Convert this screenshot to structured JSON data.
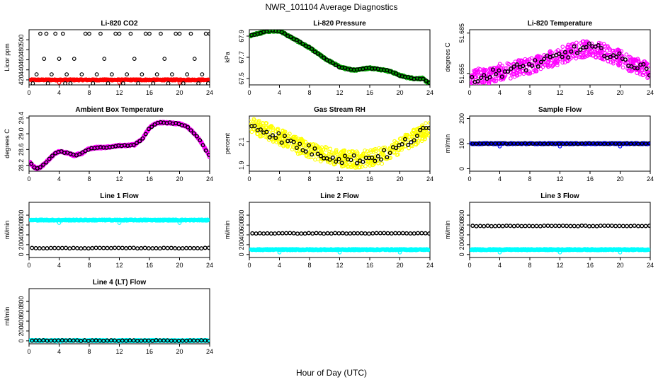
{
  "figure": {
    "title": "NWR_101104  Average Diagnostics",
    "xlabel": "Hour of Day (UTC)"
  },
  "chart_data": [
    {
      "type": "scatter",
      "title": "Li-820 CO2",
      "ylabel": "Licor ppm",
      "xlim": [
        0,
        24
      ],
      "ylim": [
        410,
        520
      ],
      "xticks": [
        "0",
        "4",
        "8",
        "12",
        "16",
        "20",
        "24"
      ],
      "yticks": [
        420,
        440,
        460,
        480,
        500
      ],
      "series": [
        {
          "color": "#ff0000",
          "shape": "band",
          "x": [
            0,
            24
          ],
          "y": [
            420,
            420
          ]
        },
        {
          "color": "#000000",
          "shape": "points",
          "x": [
            1.5,
            2.3,
            3.5,
            4.5,
            7.5,
            8.0,
            9.5,
            11.5,
            12.0,
            13.5,
            15.5,
            16.0,
            17.5,
            19.5,
            20.0,
            21.5,
            23.5,
            24.0,
            2.0,
            4.0,
            6.0,
            10.0,
            14.0,
            18.0,
            22.0,
            1.0,
            3.0,
            5.0,
            7.0,
            9.0,
            11.0,
            13.0,
            15.0,
            17.0,
            19.0,
            21.0,
            23.0,
            0.5,
            2.5,
            4.8,
            5.5,
            8.5,
            10.5,
            12.5,
            14.5,
            16.5,
            18.5,
            20.5,
            22.5,
            23.8
          ],
          "y": [
            512,
            512,
            512,
            512,
            512,
            512,
            512,
            512,
            512,
            512,
            512,
            512,
            512,
            512,
            512,
            512,
            512,
            512,
            462,
            462,
            462,
            462,
            462,
            462,
            462,
            431,
            431,
            431,
            431,
            431,
            431,
            431,
            431,
            431,
            431,
            431,
            431,
            413,
            413,
            413,
            413,
            413,
            413,
            413,
            413,
            413,
            413,
            413,
            413,
            413
          ]
        }
      ]
    },
    {
      "type": "scatter",
      "title": "Li-820 Pressure",
      "ylabel": "kPa",
      "xlim": [
        0,
        24
      ],
      "ylim": [
        67.44,
        67.96
      ],
      "xticks": [
        "0",
        "4",
        "8",
        "12",
        "16",
        "20",
        "24"
      ],
      "yticks": [
        67.5,
        67.7,
        67.9
      ],
      "series": [
        {
          "color": "#00a000",
          "shape": "curve",
          "x": [
            0,
            1,
            2,
            3,
            4,
            5,
            6,
            7,
            8,
            9,
            10,
            11,
            12,
            13,
            14,
            15,
            16,
            17,
            18,
            19,
            20,
            21,
            22,
            23,
            24
          ],
          "y": [
            67.9,
            67.92,
            67.94,
            67.95,
            67.95,
            67.91,
            67.87,
            67.83,
            67.79,
            67.74,
            67.69,
            67.65,
            67.61,
            67.59,
            67.58,
            67.59,
            67.6,
            67.59,
            67.58,
            67.56,
            67.53,
            67.51,
            67.5,
            67.5,
            67.45
          ]
        },
        {
          "color": "#000000",
          "shape": "curve-points",
          "x": [
            0,
            1,
            2,
            3,
            4,
            5,
            6,
            7,
            8,
            9,
            10,
            11,
            12,
            13,
            14,
            15,
            16,
            17,
            18,
            19,
            20,
            21,
            22,
            23,
            24
          ],
          "y": [
            67.9,
            67.92,
            67.94,
            67.95,
            67.95,
            67.91,
            67.87,
            67.83,
            67.79,
            67.74,
            67.69,
            67.65,
            67.61,
            67.59,
            67.58,
            67.59,
            67.6,
            67.59,
            67.58,
            67.56,
            67.53,
            67.51,
            67.5,
            67.5,
            67.45
          ]
        }
      ]
    },
    {
      "type": "scatter",
      "title": "Li-820 Temperature",
      "ylabel": "degrees C",
      "xlim": [
        0,
        24
      ],
      "ylim": [
        51.6465,
        51.6875
      ],
      "xticks": [
        "0",
        "4",
        "8",
        "12",
        "16",
        "20",
        "24"
      ],
      "yticks": [
        51.655,
        51.685
      ],
      "series": [
        {
          "color": "#ff00ff",
          "shape": "noisy",
          "x": [
            0,
            2,
            4,
            6,
            8,
            10,
            12,
            14,
            16,
            18,
            20,
            22,
            24
          ],
          "y": [
            51.652,
            51.653,
            51.656,
            51.658,
            51.661,
            51.664,
            51.668,
            51.672,
            51.674,
            51.671,
            51.666,
            51.661,
            51.657
          ]
        },
        {
          "color": "#000000",
          "shape": "noisy-sparse",
          "x": [
            0,
            2,
            4,
            6,
            8,
            10,
            12,
            14,
            16,
            18,
            20,
            22,
            24
          ],
          "y": [
            51.652,
            51.653,
            51.656,
            51.658,
            51.661,
            51.664,
            51.668,
            51.672,
            51.674,
            51.671,
            51.666,
            51.661,
            51.657
          ]
        }
      ]
    },
    {
      "type": "scatter",
      "title": "Ambient Box Temperature",
      "ylabel": "degrees C",
      "xlim": [
        0,
        24
      ],
      "ylim": [
        28.05,
        29.45
      ],
      "xticks": [
        "0",
        "4",
        "8",
        "12",
        "16",
        "20",
        "24"
      ],
      "yticks": [
        28.2,
        28.6,
        29.0,
        29.4
      ],
      "series": [
        {
          "color": "#ff00ff",
          "shape": "curve",
          "x": [
            0,
            0.5,
            1,
            1.5,
            2,
            2.5,
            3,
            3.5,
            4,
            5,
            6,
            7,
            8,
            9,
            10,
            11,
            12,
            13,
            14,
            15,
            16,
            17,
            18,
            19,
            20,
            21,
            22,
            23,
            24
          ],
          "y": [
            28.3,
            28.18,
            28.12,
            28.15,
            28.22,
            28.32,
            28.42,
            28.5,
            28.55,
            28.52,
            28.45,
            28.5,
            28.62,
            28.65,
            28.65,
            28.67,
            28.7,
            28.7,
            28.72,
            28.85,
            29.15,
            29.28,
            29.28,
            29.27,
            29.25,
            29.18,
            29.0,
            28.75,
            28.42
          ]
        },
        {
          "color": "#000000",
          "shape": "curve-points",
          "x": [
            0,
            0.5,
            1,
            1.5,
            2,
            2.5,
            3,
            3.5,
            4,
            5,
            6,
            7,
            8,
            9,
            10,
            11,
            12,
            13,
            14,
            15,
            16,
            17,
            18,
            19,
            20,
            21,
            22,
            23,
            24
          ],
          "y": [
            28.3,
            28.18,
            28.12,
            28.15,
            28.22,
            28.32,
            28.42,
            28.5,
            28.55,
            28.52,
            28.45,
            28.5,
            28.62,
            28.65,
            28.65,
            28.67,
            28.7,
            28.7,
            28.72,
            28.85,
            29.15,
            29.28,
            29.28,
            29.27,
            29.25,
            29.18,
            29.0,
            28.75,
            28.42
          ]
        }
      ]
    },
    {
      "type": "scatter",
      "title": "Gas Stream RH",
      "ylabel": "percent",
      "xlim": [
        0,
        24
      ],
      "ylim": [
        1.85,
        2.32
      ],
      "xticks": [
        "0",
        "4",
        "8",
        "12",
        "16",
        "20",
        "24"
      ],
      "yticks": [
        1.9,
        2.1
      ],
      "series": [
        {
          "color": "#ffff00",
          "shape": "noisy",
          "x": [
            0,
            2,
            4,
            6,
            8,
            10,
            12,
            14,
            16,
            18,
            20,
            22,
            24
          ],
          "y": [
            2.25,
            2.2,
            2.14,
            2.08,
            2.03,
            1.99,
            1.96,
            1.95,
            1.96,
            1.99,
            2.06,
            2.14,
            2.22
          ]
        },
        {
          "color": "#000000",
          "shape": "noisy-sparse",
          "x": [
            0,
            2,
            4,
            6,
            8,
            10,
            12,
            14,
            16,
            18,
            20,
            22,
            24
          ],
          "y": [
            2.25,
            2.2,
            2.14,
            2.08,
            2.03,
            1.99,
            1.96,
            1.95,
            1.96,
            1.99,
            2.06,
            2.14,
            2.22
          ]
        }
      ]
    },
    {
      "type": "scatter",
      "title": "Sample Flow",
      "ylabel": "ml/min",
      "xlim": [
        0,
        24
      ],
      "ylim": [
        -10,
        210
      ],
      "xticks": [
        "0",
        "4",
        "8",
        "12",
        "16",
        "20",
        "24"
      ],
      "yticks": [
        0,
        100,
        200
      ],
      "series": [
        {
          "color": "#0000ff",
          "shape": "band",
          "x": [
            0,
            24
          ],
          "y": [
            100,
            100
          ]
        },
        {
          "color": "#000000",
          "shape": "band-points",
          "x": [
            0,
            24
          ],
          "y": [
            100,
            100
          ]
        }
      ]
    },
    {
      "type": "scatter",
      "title": "Line 1 Flow",
      "ylabel": "ml/min",
      "xlim": [
        0,
        24
      ],
      "ylim": [
        -60,
        1060
      ],
      "xticks": [
        "0",
        "4",
        "8",
        "12",
        "16",
        "20",
        "24"
      ],
      "yticks": [
        0,
        200,
        400,
        600,
        800
      ],
      "series": [
        {
          "color": "#00ffff",
          "shape": "band",
          "x": [
            0,
            24
          ],
          "y": [
            700,
            700
          ]
        },
        {
          "color": "#000000",
          "shape": "band-points",
          "x": [
            0,
            24
          ],
          "y": [
            130,
            130
          ]
        }
      ]
    },
    {
      "type": "scatter",
      "title": "Line 2 Flow",
      "ylabel": "ml/min",
      "xlim": [
        0,
        24
      ],
      "ylim": [
        -60,
        1060
      ],
      "xticks": [
        "0",
        "4",
        "8",
        "12",
        "16",
        "20",
        "24"
      ],
      "yticks": [
        0,
        200,
        400,
        600,
        800
      ],
      "series": [
        {
          "color": "#00ffff",
          "shape": "band",
          "x": [
            0,
            24
          ],
          "y": [
            100,
            100
          ]
        },
        {
          "color": "#000000",
          "shape": "band-points",
          "x": [
            0,
            24
          ],
          "y": [
            430,
            430
          ]
        }
      ]
    },
    {
      "type": "scatter",
      "title": "Line 3 Flow",
      "ylabel": "ml/min",
      "xlim": [
        0,
        24
      ],
      "ylim": [
        -60,
        1060
      ],
      "xticks": [
        "0",
        "4",
        "8",
        "12",
        "16",
        "20",
        "24"
      ],
      "yticks": [
        0,
        200,
        400,
        600,
        800
      ],
      "series": [
        {
          "color": "#00ffff",
          "shape": "band",
          "x": [
            0,
            24
          ],
          "y": [
            100,
            100
          ]
        },
        {
          "color": "#000000",
          "shape": "band-points",
          "x": [
            0,
            24
          ],
          "y": [
            580,
            580
          ]
        }
      ]
    },
    {
      "type": "scatter",
      "title": "Line 4 (LT) Flow",
      "ylabel": "ml/min",
      "xlim": [
        0,
        24
      ],
      "ylim": [
        -60,
        1060
      ],
      "xticks": [
        "0",
        "4",
        "8",
        "12",
        "16",
        "20",
        "24"
      ],
      "yticks": [
        0,
        200,
        400,
        600,
        800
      ],
      "series": [
        {
          "color": "#00ffff",
          "shape": "band",
          "x": [
            0,
            24
          ],
          "y": [
            5,
            5
          ]
        },
        {
          "color": "#000000",
          "shape": "band-points",
          "x": [
            0,
            24
          ],
          "y": [
            5,
            5
          ]
        }
      ]
    }
  ]
}
